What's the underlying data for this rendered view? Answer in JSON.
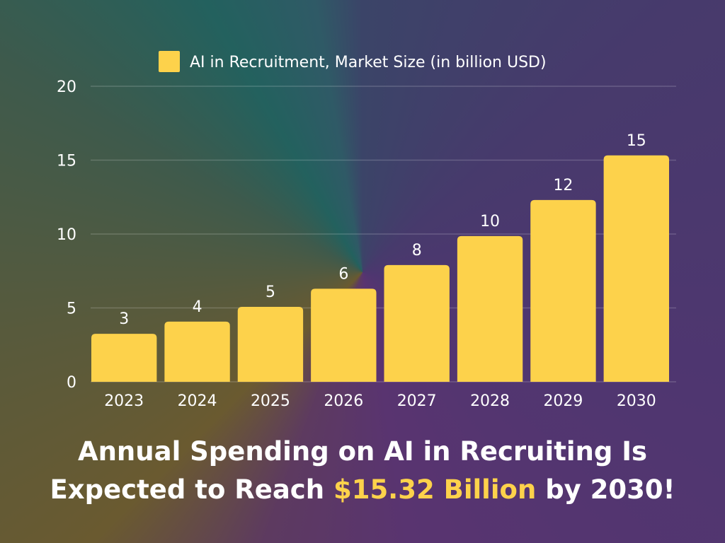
{
  "chart_data": {
    "type": "bar",
    "categories": [
      "2023",
      "2024",
      "2025",
      "2026",
      "2027",
      "2028",
      "2029",
      "2030"
    ],
    "series": [
      {
        "name": "AI in Recruitment, Market Size (in billion USD)",
        "values": [
          3.25,
          4.07,
          5.07,
          6.3,
          7.9,
          9.86,
          12.3,
          15.32
        ],
        "data_labels": [
          "3",
          "4",
          "5",
          "6",
          "8",
          "10",
          "12",
          "15"
        ]
      }
    ],
    "ylim": [
      0,
      20
    ],
    "yticks": [
      0,
      5,
      10,
      15,
      20
    ],
    "grid": true,
    "legend": "top-center",
    "colors": {
      "bar": "#fdd24b",
      "text": "#ffffff",
      "grid": "rgba(255,255,255,0.18)"
    }
  },
  "headline": {
    "line1": "Annual Spending on AI in Recruiting Is",
    "line2_prefix": "Expected to Reach ",
    "line2_highlight": "$15.32 Billion",
    "line2_suffix": " by 2030!"
  }
}
